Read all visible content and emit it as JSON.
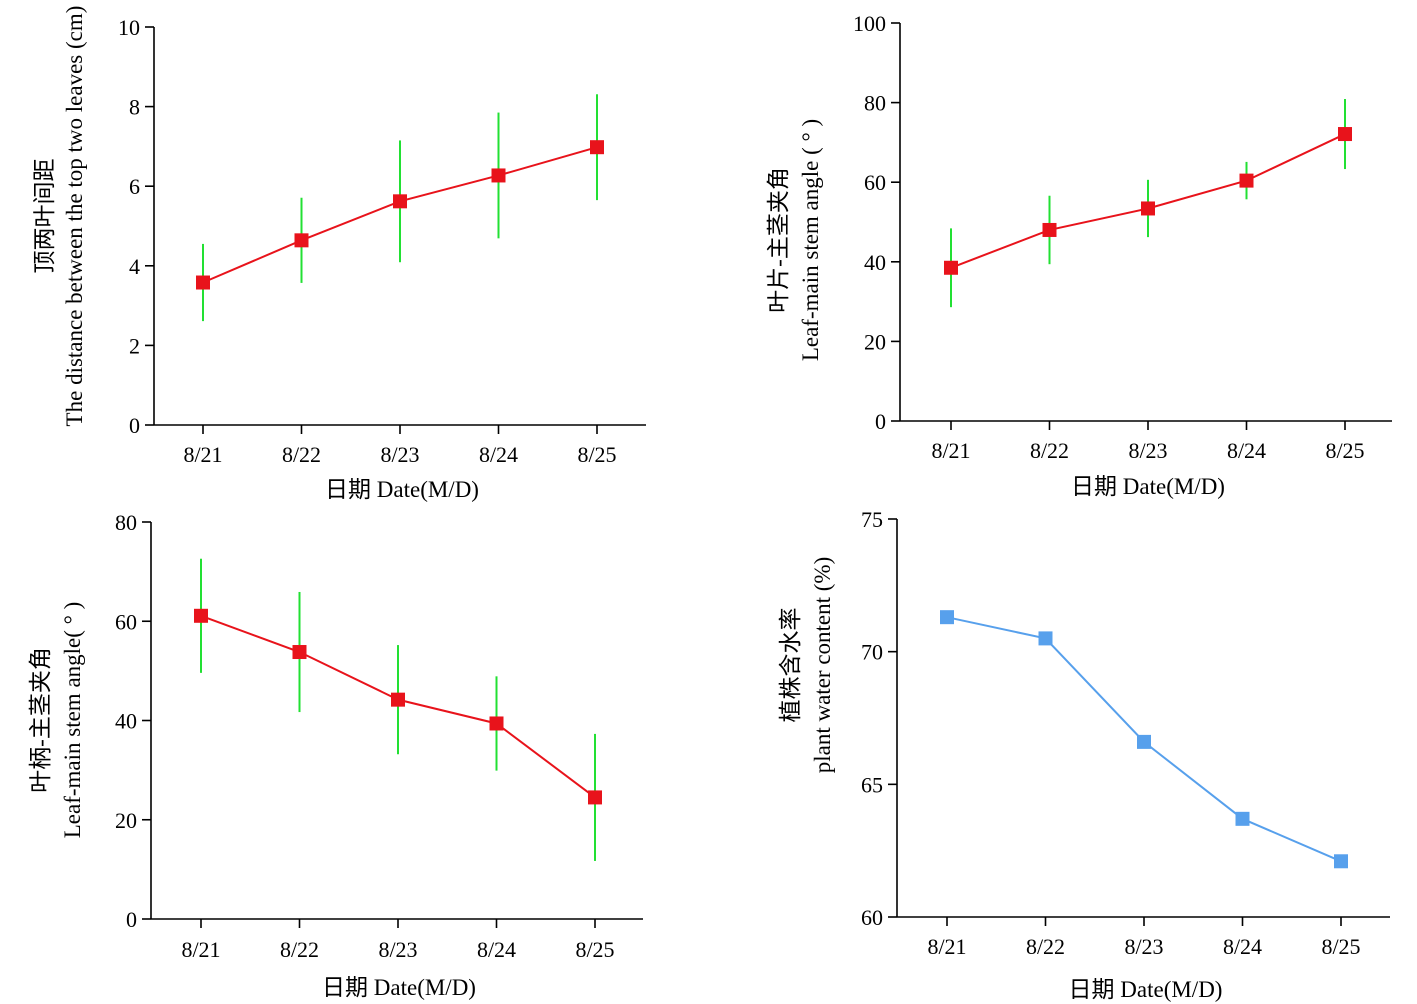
{
  "chart_data": [
    {
      "type": "line",
      "categories": [
        "8/21",
        "8/22",
        "8/23",
        "8/24",
        "8/25"
      ],
      "series": [
        {
          "values": [
            3.58,
            4.64,
            5.62,
            6.27,
            6.98
          ],
          "error": [
            0.97,
            1.07,
            1.53,
            1.58,
            1.33
          ]
        }
      ],
      "ylim": [
        0,
        10
      ],
      "yticks": [
        0,
        2,
        4,
        6,
        8,
        10
      ],
      "ylabel_lines": [
        "顶两叶间距",
        "The distance between the top two leaves (cm)"
      ],
      "xlabel": "日期 Date(M/D)",
      "line_color": "#e8131b",
      "marker_color": "#e8131b",
      "error_color": "#22e033"
    },
    {
      "type": "line",
      "categories": [
        "8/21",
        "8/22",
        "8/23",
        "8/24",
        "8/25"
      ],
      "series": [
        {
          "values": [
            38.5,
            48.0,
            53.4,
            60.4,
            72.1
          ],
          "error": [
            9.9,
            8.6,
            7.2,
            4.7,
            8.8
          ]
        }
      ],
      "ylim": [
        0,
        100
      ],
      "yticks": [
        0,
        20,
        40,
        60,
        80,
        100
      ],
      "ylabel_lines": [
        "叶片-主茎夹角",
        "Leaf-main stem angle ( ° )"
      ],
      "xlabel": "日期 Date(M/D)",
      "line_color": "#e8131b",
      "marker_color": "#e8131b",
      "error_color": "#22e033"
    },
    {
      "type": "line",
      "categories": [
        "8/21",
        "8/22",
        "8/23",
        "8/24",
        "8/25"
      ],
      "series": [
        {
          "values": [
            61.1,
            53.8,
            44.2,
            39.4,
            24.5
          ],
          "error": [
            11.5,
            12.1,
            11.0,
            9.5,
            12.8
          ]
        }
      ],
      "ylim": [
        0,
        80
      ],
      "yticks": [
        0,
        20,
        40,
        60,
        80
      ],
      "ylabel_lines": [
        "叶柄-主茎夹角",
        "Leaf-main stem angle( ° )"
      ],
      "xlabel": "日期 Date(M/D)",
      "line_color": "#e8131b",
      "marker_color": "#e8131b",
      "error_color": "#22e033"
    },
    {
      "type": "line",
      "categories": [
        "8/21",
        "8/22",
        "8/23",
        "8/24",
        "8/25"
      ],
      "series": [
        {
          "values": [
            71.3,
            70.5,
            66.6,
            63.7,
            62.1
          ]
        }
      ],
      "ylim": [
        60,
        75
      ],
      "yticks": [
        60,
        65,
        70,
        75
      ],
      "ylabel_lines": [
        "植株含水率",
        "plant water content (%)"
      ],
      "xlabel": "日期 Date(M/D)",
      "line_color": "#57a0ec",
      "marker_color": "#57a0ec"
    }
  ]
}
